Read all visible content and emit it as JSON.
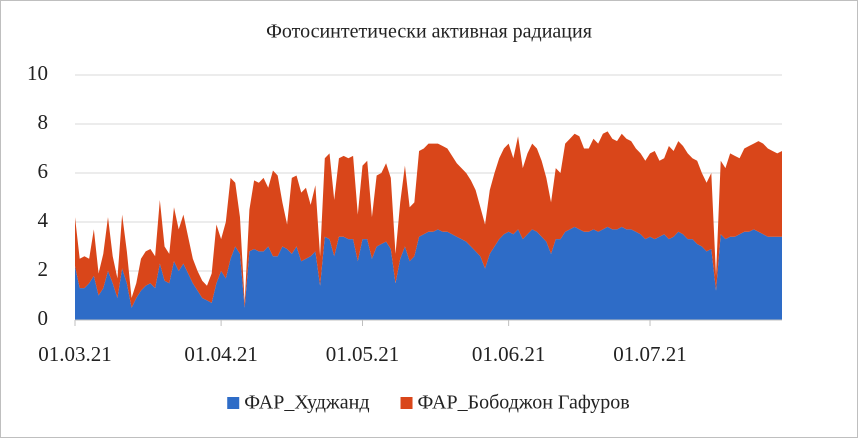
{
  "chart_data": {
    "type": "stacked-area",
    "title": "Фотосинтетически активная радиация",
    "categories": [
      "01.03.21",
      null,
      null,
      null,
      null,
      null,
      null,
      null,
      null,
      null,
      null,
      null,
      null,
      null,
      null,
      null,
      null,
      null,
      null,
      null,
      null,
      null,
      null,
      null,
      null,
      null,
      null,
      null,
      null,
      null,
      null,
      "01.04.21",
      null,
      null,
      null,
      null,
      null,
      null,
      null,
      null,
      null,
      null,
      null,
      null,
      null,
      null,
      null,
      null,
      null,
      null,
      null,
      null,
      null,
      null,
      null,
      null,
      null,
      null,
      null,
      null,
      null,
      "01.05.21",
      null,
      null,
      null,
      null,
      null,
      null,
      null,
      null,
      null,
      null,
      null,
      null,
      null,
      null,
      null,
      null,
      null,
      null,
      null,
      null,
      null,
      null,
      null,
      null,
      null,
      null,
      null,
      null,
      null,
      null,
      "01.06.21",
      null,
      null,
      null,
      null,
      null,
      null,
      null,
      null,
      null,
      null,
      null,
      null,
      null,
      null,
      null,
      null,
      null,
      null,
      null,
      null,
      null,
      null,
      null,
      null,
      null,
      null,
      null,
      null,
      null,
      "01.07.21",
      null,
      null,
      null,
      null,
      null,
      null,
      null,
      null,
      null,
      null,
      null,
      null,
      null,
      null,
      null,
      null,
      null,
      null,
      null,
      null,
      null,
      null,
      null,
      null,
      null,
      null,
      null,
      null
    ],
    "series": [
      {
        "name": "ФАР_Худжанд",
        "color": "#2e6cc7",
        "values": [
          2.2,
          1.3,
          1.3,
          1.5,
          1.8,
          1.0,
          1.3,
          2.0,
          1.5,
          0.9,
          2.1,
          1.5,
          0.5,
          0.9,
          1.2,
          1.4,
          1.5,
          1.3,
          2.3,
          1.6,
          1.5,
          2.4,
          2.0,
          2.3,
          1.9,
          1.5,
          1.2,
          0.9,
          0.8,
          0.7,
          1.5,
          2.0,
          1.7,
          2.5,
          3.0,
          2.7,
          0.5,
          2.8,
          2.9,
          2.8,
          2.8,
          3.0,
          2.6,
          2.6,
          3.0,
          2.9,
          2.7,
          3.0,
          2.4,
          2.5,
          2.6,
          2.8,
          1.4,
          3.4,
          3.3,
          2.6,
          3.4,
          3.4,
          3.3,
          3.3,
          2.4,
          3.3,
          3.3,
          2.5,
          3.0,
          3.1,
          3.2,
          2.9,
          1.5,
          2.5,
          3.0,
          2.4,
          2.6,
          3.4,
          3.5,
          3.6,
          3.6,
          3.7,
          3.6,
          3.6,
          3.5,
          3.4,
          3.3,
          3.2,
          3.0,
          2.8,
          2.6,
          2.1,
          2.7,
          3.0,
          3.3,
          3.5,
          3.6,
          3.5,
          3.7,
          3.3,
          3.5,
          3.7,
          3.6,
          3.4,
          3.2,
          2.7,
          3.3,
          3.3,
          3.6,
          3.7,
          3.8,
          3.7,
          3.6,
          3.6,
          3.7,
          3.6,
          3.7,
          3.8,
          3.7,
          3.7,
          3.8,
          3.7,
          3.7,
          3.6,
          3.5,
          3.3,
          3.4,
          3.3,
          3.4,
          3.5,
          3.3,
          3.4,
          3.6,
          3.5,
          3.3,
          3.3,
          3.1,
          3.0,
          2.8,
          2.9,
          1.2,
          3.5,
          3.3,
          3.4,
          3.4,
          3.5,
          3.6,
          3.6,
          3.7,
          3.6,
          3.5,
          3.4,
          3.4,
          3.4,
          3.4
        ]
      },
      {
        "name": "ФАР_Бободжон Гафуров",
        "color": "#d9461a",
        "values": [
          2.0,
          1.2,
          1.3,
          1.0,
          1.9,
          0.9,
          1.4,
          2.2,
          1.1,
          0.8,
          2.2,
          1.3,
          0.4,
          0.6,
          1.3,
          1.4,
          1.4,
          1.3,
          2.6,
          1.4,
          1.2,
          2.2,
          1.7,
          2.0,
          1.5,
          1.0,
          0.8,
          0.7,
          0.6,
          1.2,
          2.4,
          1.3,
          2.3,
          3.3,
          2.6,
          1.5,
          0.2,
          1.7,
          2.8,
          2.8,
          3.0,
          2.4,
          3.5,
          3.3,
          1.8,
          1.0,
          3.1,
          2.9,
          2.8,
          2.9,
          2.1,
          2.7,
          1.2,
          3.2,
          3.5,
          2.3,
          3.2,
          3.3,
          3.3,
          3.4,
          1.9,
          3.0,
          3.2,
          1.7,
          2.9,
          2.9,
          3.2,
          2.9,
          1.2,
          2.3,
          3.3,
          2.2,
          2.2,
          3.5,
          3.5,
          3.6,
          3.6,
          3.5,
          3.5,
          3.4,
          3.2,
          3.0,
          2.9,
          2.8,
          2.7,
          2.5,
          2.0,
          1.8,
          2.6,
          3.0,
          3.3,
          3.5,
          3.6,
          3.1,
          3.8,
          2.9,
          3.3,
          3.5,
          3.4,
          3.1,
          2.6,
          2.1,
          2.9,
          2.7,
          3.6,
          3.7,
          3.8,
          3.8,
          3.4,
          3.4,
          3.7,
          3.6,
          3.9,
          3.9,
          3.7,
          3.6,
          3.8,
          3.7,
          3.6,
          3.4,
          3.3,
          3.2,
          3.4,
          3.6,
          3.1,
          3.1,
          3.8,
          3.5,
          3.7,
          3.6,
          3.5,
          3.3,
          3.4,
          3.0,
          2.8,
          3.1,
          0.6,
          3.0,
          2.9,
          3.4,
          3.3,
          3.1,
          3.4,
          3.5,
          3.5,
          3.7,
          3.7,
          3.6,
          3.5,
          3.4,
          3.5
        ]
      }
    ],
    "ylim": [
      0,
      10
    ],
    "yticks": [
      0,
      2,
      4,
      6,
      8,
      10
    ],
    "grid": true,
    "legend": "bottom"
  }
}
